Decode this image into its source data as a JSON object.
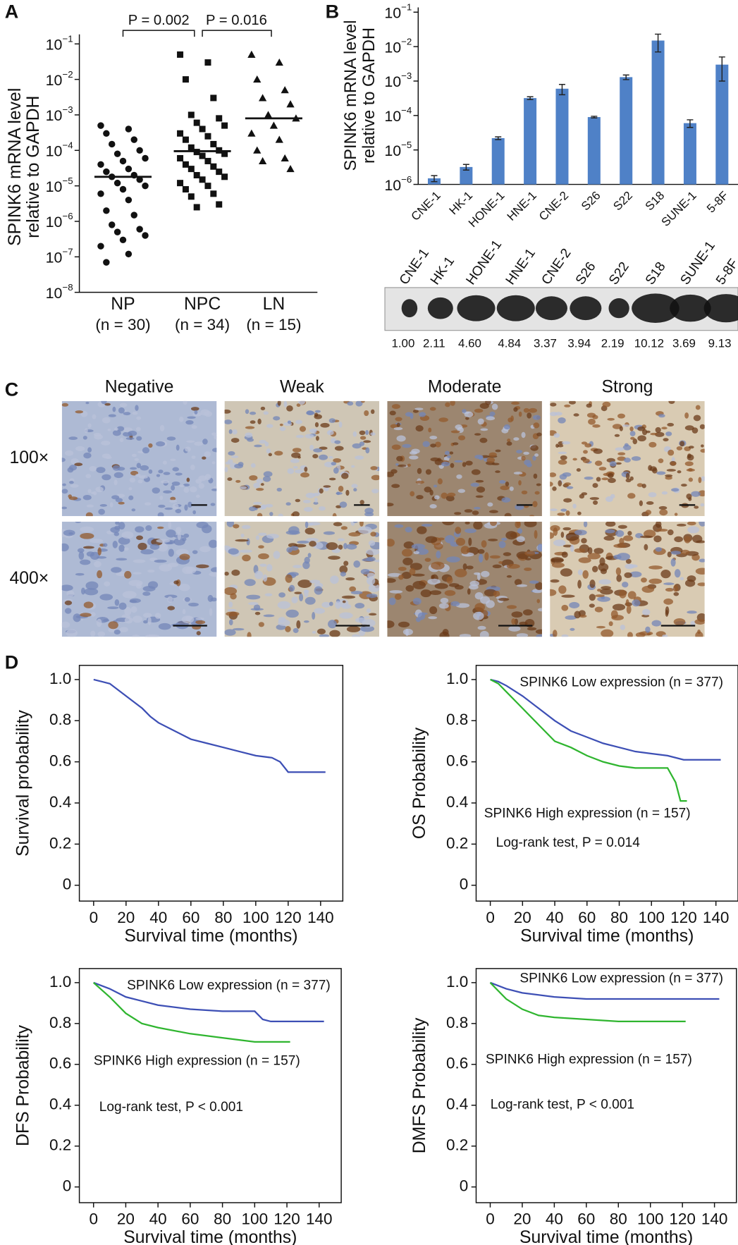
{
  "chart_data": [
    {
      "type": "strip",
      "panel": "A",
      "y_label": [
        "SPINK6 mRNA level",
        "relative to GAPDH"
      ],
      "categories": [
        "NP",
        "NPC",
        "LN"
      ],
      "category_notes": [
        "(n = 30)",
        "(n = 34)",
        "(n = 15)"
      ],
      "values": [
        [
          0.0005,
          0.0004,
          0.0003,
          0.0002,
          0.00015,
          0.0001,
          8e-05,
          6e-05,
          5e-05,
          4e-05,
          3e-05,
          2.5e-05,
          2e-05,
          1.8e-05,
          1.5e-05,
          1.2e-05,
          1e-05,
          8e-06,
          6e-06,
          4e-06,
          2e-06,
          1.5e-06,
          8e-07,
          6e-07,
          5e-07,
          4e-07,
          3e-07,
          2e-07,
          1.2e-07,
          7e-08
        ],
        [
          0.05,
          0.03,
          0.01,
          0.003,
          0.001,
          0.0008,
          0.0006,
          0.0005,
          0.0004,
          0.0003,
          0.00025,
          0.0002,
          0.00015,
          0.00012,
          0.0001,
          9e-05,
          8e-05,
          7e-05,
          6e-05,
          5e-05,
          4e-05,
          3.5e-05,
          3e-05,
          2.5e-05,
          2e-05,
          1.8e-05,
          1.5e-05,
          1.2e-05,
          1e-05,
          8e-06,
          6e-06,
          5e-06,
          3e-06,
          2.5e-06
        ],
        [
          0.05,
          0.03,
          0.01,
          0.005,
          0.003,
          0.002,
          0.001,
          0.0008,
          0.0005,
          0.0003,
          0.0002,
          0.0001,
          6e-05,
          5e-05,
          3e-05
        ]
      ],
      "medians": [
        1.8e-05,
        9.5e-05,
        0.0008
      ],
      "color": "#111111",
      "log": true,
      "ylim": [
        1e-08,
        0.1
      ],
      "yticks": [
        {
          "value": 0.1,
          "label": "10",
          "exp": "−1"
        },
        {
          "value": 0.01,
          "label": "10",
          "exp": "−2"
        },
        {
          "value": 0.001,
          "label": "10",
          "exp": "−3"
        },
        {
          "value": 0.0001,
          "label": "10",
          "exp": "−4"
        },
        {
          "value": 1e-05,
          "label": "10",
          "exp": "−5"
        },
        {
          "value": 1e-06,
          "label": "10",
          "exp": "−6"
        },
        {
          "value": 1e-07,
          "label": "10",
          "exp": "−7"
        },
        {
          "value": 1e-08,
          "label": "10",
          "exp": "−8"
        }
      ],
      "annotations": [
        "P = 0.002",
        "P = 0.016"
      ]
    },
    {
      "type": "bar",
      "panel": "B",
      "y_label": [
        "SPINK6 mRNA level",
        "relative to GAPDH"
      ],
      "categories": [
        "CNE-1",
        "HK-1",
        "HONE-1",
        "HNE-1",
        "CNE-2",
        "S26",
        "S22",
        "S18",
        "SUNE-1",
        "5-8F"
      ],
      "values": [
        1.5e-06,
        3.2e-06,
        2.2e-05,
        0.00032,
        0.0006,
        9e-05,
        0.0013,
        0.015,
        6e-05,
        0.003
      ],
      "errors": [
        3e-07,
        6e-07,
        2e-06,
        3e-05,
        0.0002,
        5e-06,
        0.0002,
        0.008,
        1.5e-05,
        0.002
      ],
      "color": "#4f81c7",
      "log": true,
      "ylim": [
        1e-06,
        0.1
      ],
      "yticks": [
        {
          "value": 0.1,
          "label": "10",
          "exp": "−1"
        },
        {
          "value": 0.01,
          "label": "10",
          "exp": "−2"
        },
        {
          "value": 0.001,
          "label": "10",
          "exp": "−3"
        },
        {
          "value": 0.0001,
          "label": "10",
          "exp": "−4"
        },
        {
          "value": 1e-05,
          "label": "10",
          "exp": "−5"
        },
        {
          "value": 1e-06,
          "label": "10",
          "exp": "−6"
        }
      ]
    },
    {
      "type": "line",
      "panel": "D",
      "y_label": "Survival probability",
      "x_label": "Survival time (months)",
      "xlim": [
        -8.8,
        153.7
      ],
      "ylim": [
        -0.077,
        1.069
      ],
      "xticks": [
        0,
        20,
        40,
        60,
        80,
        100,
        120,
        140
      ],
      "yticks": [
        0,
        0.2,
        0.4,
        0.6,
        0.8,
        {
          "value": 1,
          "label": "1.0"
        }
      ],
      "series": [
        {
          "color": "#3d4fb5",
          "x": [
            0,
            5,
            10,
            15,
            20,
            25,
            30,
            35,
            40,
            50,
            60,
            70,
            80,
            90,
            100,
            110,
            115,
            120,
            130,
            143
          ],
          "values": [
            1,
            0.99,
            0.98,
            0.95,
            0.92,
            0.89,
            0.86,
            0.82,
            0.79,
            0.75,
            0.71,
            0.69,
            0.67,
            0.65,
            0.63,
            0.62,
            0.6,
            0.55,
            0.55,
            0.55
          ]
        }
      ]
    },
    {
      "type": "line",
      "y_label": "OS Probability",
      "x_label": "Survival time (months)",
      "xlim": [
        -8.8,
        153.7
      ],
      "ylim": [
        -0.077,
        1.069
      ],
      "xticks": [
        0,
        20,
        40,
        60,
        80,
        100,
        120,
        140
      ],
      "yticks": [
        0,
        0.2,
        0.4,
        0.6,
        0.8,
        {
          "value": 1,
          "label": "1.0"
        }
      ],
      "series": [
        {
          "name": "SPINK6 Low expression (n = 377)",
          "color": "#3d4fb5",
          "x": [
            0,
            5,
            10,
            20,
            30,
            40,
            50,
            60,
            70,
            80,
            90,
            100,
            110,
            120,
            130,
            143
          ],
          "values": [
            1,
            0.99,
            0.97,
            0.92,
            0.86,
            0.8,
            0.75,
            0.72,
            0.69,
            0.67,
            0.65,
            0.64,
            0.63,
            0.61,
            0.61,
            0.61
          ]
        },
        {
          "name": "SPINK6 High expression (n = 157)",
          "color": "#2fb52f",
          "x": [
            0,
            5,
            10,
            20,
            30,
            40,
            50,
            60,
            70,
            80,
            90,
            100,
            110,
            115,
            118,
            122
          ],
          "values": [
            1,
            0.98,
            0.94,
            0.86,
            0.78,
            0.7,
            0.67,
            0.63,
            0.6,
            0.58,
            0.57,
            0.57,
            0.57,
            0.5,
            0.41,
            0.41
          ]
        }
      ],
      "annotation": "Log-rank test, P = 0.014"
    },
    {
      "type": "line",
      "y_label": "DFS Probability",
      "x_label": "Survival time (months)",
      "xlim": [
        -8.8,
        153.7
      ],
      "ylim": [
        -0.077,
        1.069
      ],
      "xticks": [
        0,
        20,
        40,
        60,
        80,
        100,
        120,
        140
      ],
      "yticks": [
        0,
        0.2,
        0.4,
        0.6,
        0.8,
        {
          "value": 1,
          "label": "1.0"
        }
      ],
      "series": [
        {
          "name": "SPINK6 Low expression (n = 377)",
          "color": "#3d4fb5",
          "x": [
            0,
            10,
            20,
            30,
            40,
            60,
            80,
            100,
            105,
            110,
            143
          ],
          "values": [
            1,
            0.97,
            0.93,
            0.91,
            0.89,
            0.87,
            0.86,
            0.86,
            0.82,
            0.81,
            0.81
          ]
        },
        {
          "name": "SPINK6 High expression (n = 157)",
          "color": "#2fb52f",
          "x": [
            0,
            10,
            20,
            30,
            40,
            60,
            80,
            90,
            100,
            122
          ],
          "values": [
            1,
            0.93,
            0.85,
            0.8,
            0.78,
            0.75,
            0.73,
            0.72,
            0.71,
            0.71
          ]
        }
      ],
      "annotation": "Log-rank test, P < 0.001"
    },
    {
      "type": "line",
      "y_label": "DMFS Probability",
      "x_label": "Survival time (months)",
      "xlim": [
        -8.8,
        153.7
      ],
      "ylim": [
        -0.077,
        1.069
      ],
      "xticks": [
        0,
        20,
        40,
        60,
        80,
        100,
        120,
        140
      ],
      "yticks": [
        0,
        0.2,
        0.4,
        0.6,
        0.8,
        {
          "value": 1,
          "label": "1.0"
        }
      ],
      "series": [
        {
          "name": "SPINK6 Low expression (n = 377)",
          "color": "#3d4fb5",
          "x": [
            0,
            10,
            20,
            40,
            60,
            80,
            100,
            120,
            143
          ],
          "values": [
            1,
            0.97,
            0.95,
            0.93,
            0.92,
            0.92,
            0.92,
            0.92,
            0.92
          ]
        },
        {
          "name": "SPINK6 High expression (n = 157)",
          "color": "#2fb52f",
          "x": [
            0,
            10,
            20,
            30,
            40,
            60,
            80,
            100,
            122
          ],
          "values": [
            1,
            0.92,
            0.87,
            0.84,
            0.83,
            0.82,
            0.81,
            0.81,
            0.81
          ]
        }
      ],
      "annotation": "Log-rank test, P < 0.001"
    }
  ],
  "blot": {
    "lanes": [
      "CNE-1",
      "HK-1",
      "HONE-1",
      "HNE-1",
      "CNE-2",
      "S26",
      "S22",
      "S18",
      "SUNE-1",
      "5-8F"
    ],
    "values": [
      "1.00",
      "2.11",
      "4.60",
      "4.84",
      "3.37",
      "3.94",
      "2.19",
      "10.12",
      "3.69",
      "9.13"
    ]
  },
  "ihc": {
    "panel": "C",
    "columns": [
      "Negative",
      "Weak",
      "Moderate",
      "Strong"
    ],
    "rows": [
      "100×",
      "400×"
    ]
  }
}
